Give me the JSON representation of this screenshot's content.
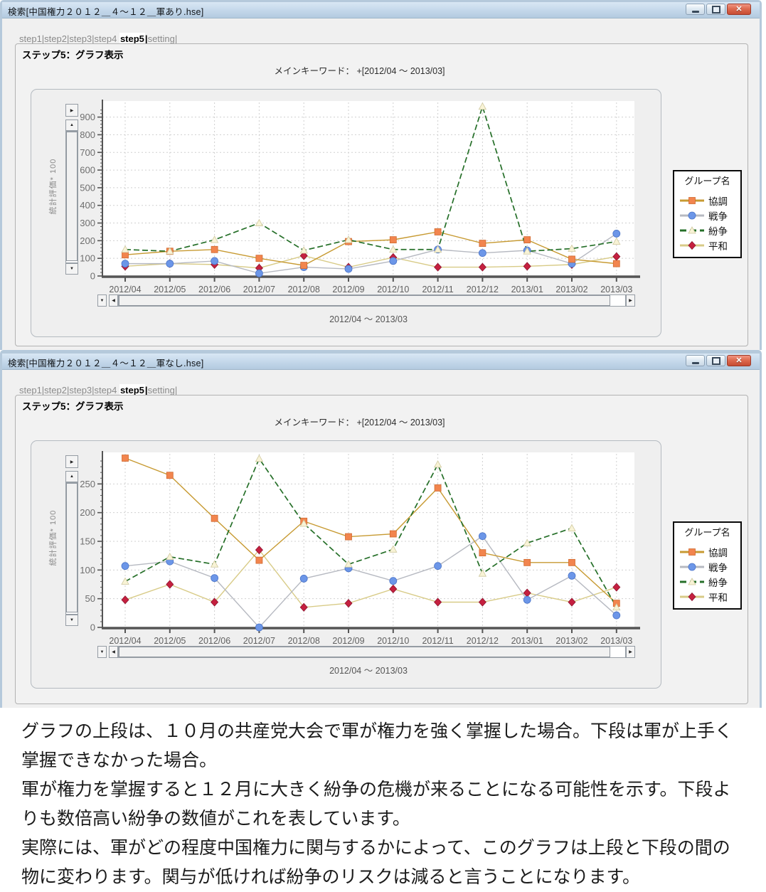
{
  "icons": {
    "close": "✕",
    "minimize": "minimize-bar",
    "maximize": "maximize-box",
    "up": "▲",
    "down": "▼",
    "left": "◀",
    "right": "▶",
    "flyout": "▶",
    "dropdown": "▼"
  },
  "tabs": {
    "inactive_left": "step1|step2|step3|step4 ",
    "active": "step5",
    "cursor": "|",
    "inactive_right": "setting|"
  },
  "legend": {
    "title": "グループ名",
    "items": [
      {
        "label": "協調"
      },
      {
        "label": "戦争"
      },
      {
        "label": "紛争"
      },
      {
        "label": "平和"
      }
    ]
  },
  "series_styles": [
    {
      "name": "協調",
      "line_color": "#c79a32",
      "marker": "square",
      "marker_color": "#f2854e",
      "marker_edge": "#d06a30",
      "dashed": false
    },
    {
      "name": "戦争",
      "line_color": "#b6b9c1",
      "marker": "circle",
      "marker_color": "#6c96e8",
      "marker_edge": "#4a74c8",
      "dashed": false
    },
    {
      "name": "紛争",
      "line_color": "#256f28",
      "marker": "triangle",
      "marker_color": "#f8f3d6",
      "marker_edge": "#cfc89e",
      "dashed": true
    },
    {
      "name": "平和",
      "line_color": "#d8cb87",
      "marker": "diamond",
      "marker_color": "#c5203f",
      "marker_edge": "#8e1530",
      "dashed": false
    }
  ],
  "windows": [
    {
      "title": "検索[中国権力２０１２＿４～１２＿軍あり.hse]",
      "step_label": "ステップ5：グラフ表示",
      "keyword": "メインキーワード：  +[2012/04 ～ 2013/03]",
      "chart_data": {
        "type": "line",
        "categories": [
          "2012/04",
          "2012/05",
          "2012/06",
          "2012/07",
          "2012/08",
          "2012/09",
          "2012/10",
          "2012/11",
          "2012/12",
          "2013/01",
          "2013/02",
          "2013/03"
        ],
        "series": [
          {
            "name": "協調",
            "values": [
              120,
              140,
              150,
              100,
              60,
              195,
              205,
              250,
              185,
              205,
              95,
              70
            ]
          },
          {
            "name": "戦争",
            "values": [
              70,
              70,
              85,
              15,
              50,
              40,
              85,
              150,
              130,
              145,
              70,
              240
            ]
          },
          {
            "name": "紛争",
            "values": [
              150,
              140,
              205,
              300,
              145,
              205,
              150,
              150,
              960,
              140,
              155,
              195
            ]
          },
          {
            "name": "平和",
            "values": [
              55,
              70,
              65,
              45,
              115,
              50,
              105,
              50,
              50,
              55,
              65,
              110
            ]
          }
        ],
        "ylabel": "統計評価* 100",
        "xlabel": "2012/04 ～ 2013/03",
        "ylim": [
          0,
          975
        ],
        "ytick_step": 100,
        "ytick_max": 900,
        "grid": true,
        "legend_position": "right"
      }
    },
    {
      "title": "検索[中国権力２０１２＿４～１２＿軍なし.hse]",
      "step_label": "ステップ5：グラフ表示",
      "keyword": "メインキーワード：  +[2012/04 ～ 2013/03]",
      "chart_data": {
        "type": "line",
        "categories": [
          "2012/04",
          "2012/05",
          "2012/06",
          "2012/07",
          "2012/08",
          "2012/09",
          "2012/10",
          "2012/11",
          "2012/12",
          "2013/01",
          "2013/02",
          "2013/03"
        ],
        "series": [
          {
            "name": "協調",
            "values": [
              295,
              265,
              190,
              117,
              185,
              158,
              163,
              243,
              130,
              113,
              113,
              42
            ]
          },
          {
            "name": "戦争",
            "values": [
              107,
              115,
              86,
              0,
              85,
              103,
              81,
              107,
              159,
              48,
              90,
              21
            ]
          },
          {
            "name": "紛争",
            "values": [
              80,
              123,
              110,
              294,
              181,
              110,
              136,
              284,
              94,
              147,
              173,
              35
            ]
          },
          {
            "name": "平和",
            "values": [
              48,
              75,
              44,
              135,
              35,
              42,
              67,
              44,
              44,
              60,
              44,
              70
            ]
          }
        ],
        "ylabel": "統計評価* 100",
        "xlabel": "2012/04 ～ 2013/03",
        "ylim": [
          0,
          300
        ],
        "ytick_step": 50,
        "ytick_max": 250,
        "grid": true,
        "legend_position": "right"
      }
    }
  ],
  "footer": {
    "lines": [
      "グラフの上段は、１０月の共産党大会で軍が権力を強く掌握した場合。下段は軍が上手く",
      "掌握できなかった場合。",
      "軍が権力を掌握すると１２月に大きく紛争の危機が来ることになる可能性を示す。下段よ",
      "りも数倍高い紛争の数値がこれを表しています。",
      "実際には、軍がどの程度中国権力に関与するかによって、このグラフは上段と下段の間の",
      "物に変わります。関与が低ければ紛争のリスクは減ると言うことになります。"
    ]
  }
}
